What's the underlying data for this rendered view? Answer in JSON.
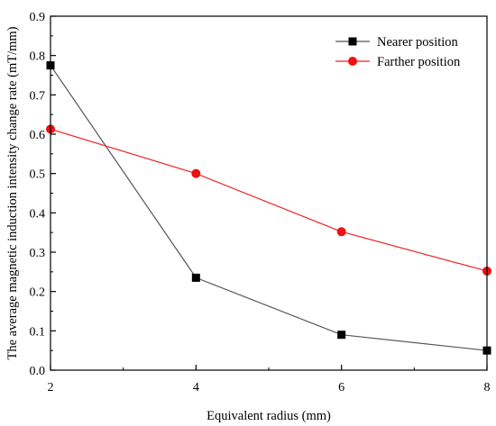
{
  "chart_data": {
    "type": "line",
    "title": "",
    "xlabel": "Equivalent radius (mm)",
    "ylabel": "The average magnetic induction intensity change rate (mT/mm)",
    "xlim": [
      2,
      8
    ],
    "ylim": [
      0.0,
      0.9
    ],
    "x_ticks": [
      2,
      4,
      6,
      8
    ],
    "y_ticks": [
      0.0,
      0.1,
      0.2,
      0.3,
      0.4,
      0.5,
      0.6,
      0.7,
      0.8,
      0.9
    ],
    "x_tick_labels": [
      "2",
      "4",
      "6",
      "8"
    ],
    "y_tick_labels": [
      "0.0",
      "0.1",
      "0.2",
      "0.3",
      "0.4",
      "0.5",
      "0.6",
      "0.7",
      "0.8",
      "0.9"
    ],
    "grid": false,
    "legend_position": "top-right",
    "series": [
      {
        "name": "Nearer position",
        "color": "#000000",
        "line_color": "#555555",
        "marker": "square",
        "x": [
          2,
          4,
          6,
          8
        ],
        "y": [
          0.775,
          0.235,
          0.09,
          0.05
        ]
      },
      {
        "name": "Farther position",
        "color": "#ee1111",
        "line_color": "#ee2222",
        "marker": "circle",
        "x": [
          2,
          4,
          6,
          8
        ],
        "y": [
          0.613,
          0.5,
          0.352,
          0.252
        ]
      }
    ]
  }
}
